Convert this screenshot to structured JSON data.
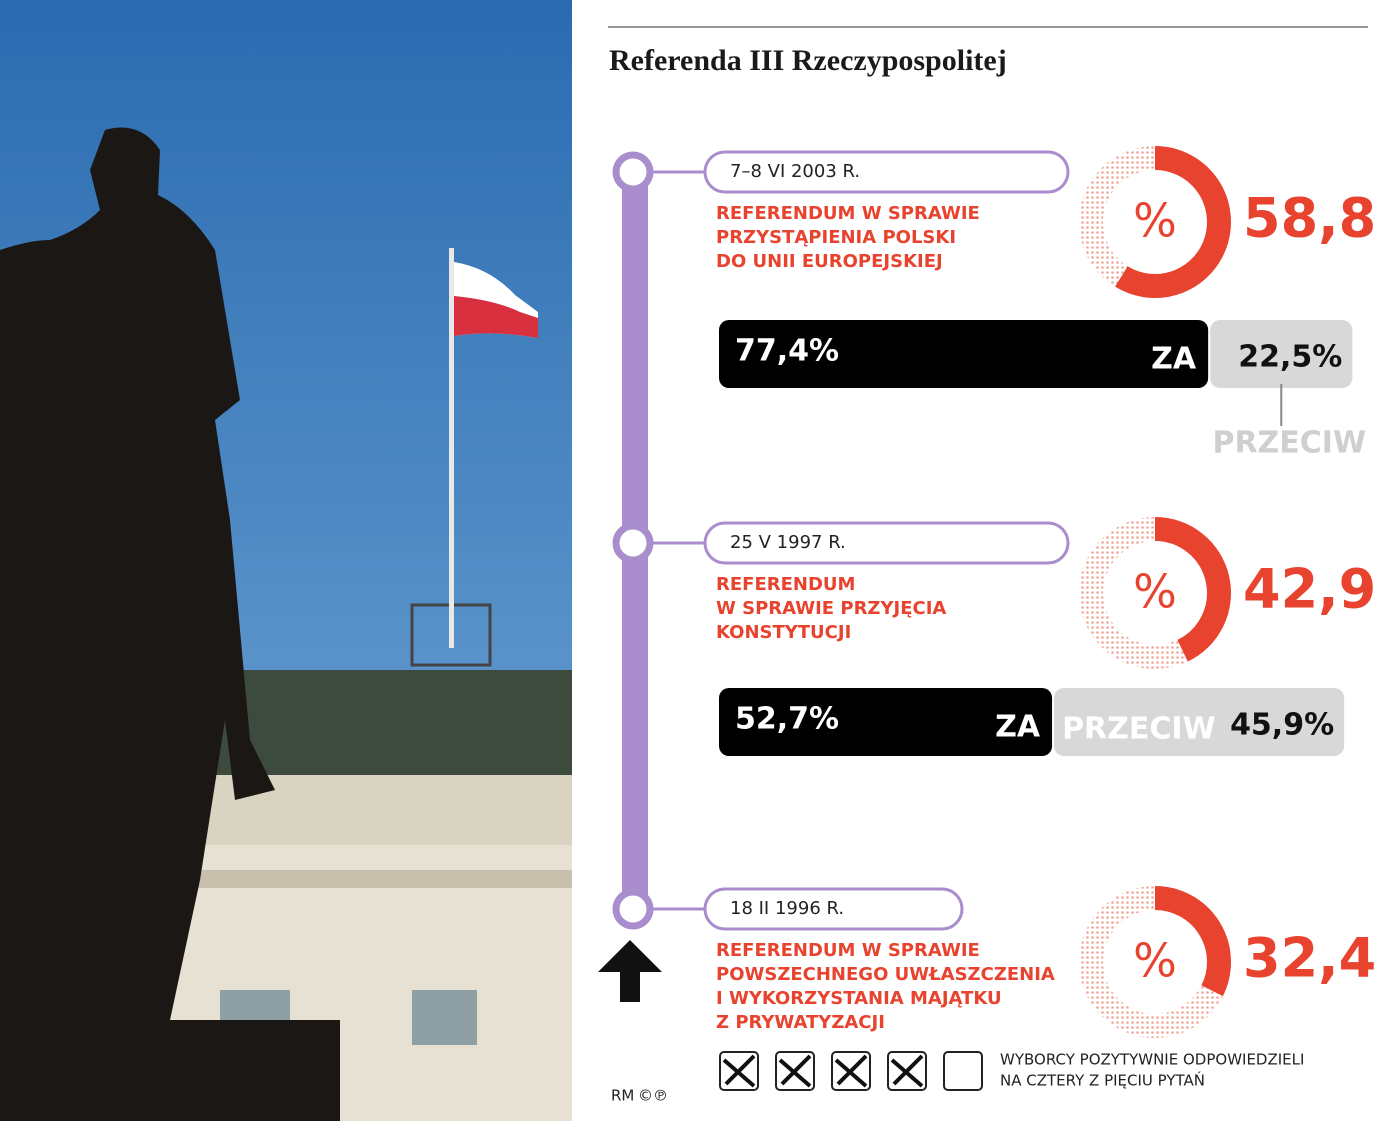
{
  "header": {
    "title": "Referenda III Rzeczypospolitej"
  },
  "referenda": [
    {
      "date": "7–8 VI 2003 R.",
      "title": [
        "REFERENDUM W SPRAWIE",
        "PRZYSTĄPIENIA POLSKI",
        "DO UNII EUROPEJSKIEJ"
      ],
      "symbol": "%",
      "turnout": {
        "value": 58.8,
        "label": "58,8"
      },
      "za": {
        "value": 77.4,
        "label": "77,4%"
      },
      "za_label": "ZA",
      "przeciw": {
        "value": 22.5,
        "label": "22,5%"
      },
      "przeciw_label": "PRZECIW"
    },
    {
      "date": "25 V 1997 R.",
      "title": [
        "REFERENDUM",
        "W SPRAWIE PRZYJĘCIA",
        "KONSTYTUCJI"
      ],
      "symbol": "%",
      "turnout": {
        "value": 42.9,
        "label": "42,9"
      },
      "za": {
        "value": 52.7,
        "label": "52,7%"
      },
      "za_label": "ZA",
      "przeciw": {
        "value": 45.9,
        "label": "45,9%"
      },
      "przeciw_label": "PRZECIW"
    },
    {
      "date": "18 II 1996 R.",
      "title": [
        "REFERENDUM W SPRAWIE",
        "POWSZECHNEGO UWŁASZCZENIA",
        "I WYKORZYSTANIA MAJĄTKU",
        "Z PRYWATYZACJI"
      ],
      "symbol": "%",
      "turnout": {
        "value": 32.4,
        "label": "32,4"
      }
    }
  ],
  "footer": {
    "checks": [
      true,
      true,
      true,
      true,
      false
    ],
    "legend": [
      "WYBORCY POZYTYWNIE ODPOWIEDZIELI",
      "NA CZTERY Z PIĘCIU PYTAŃ"
    ],
    "credit": "RM",
    "copyright": "©℗"
  }
}
